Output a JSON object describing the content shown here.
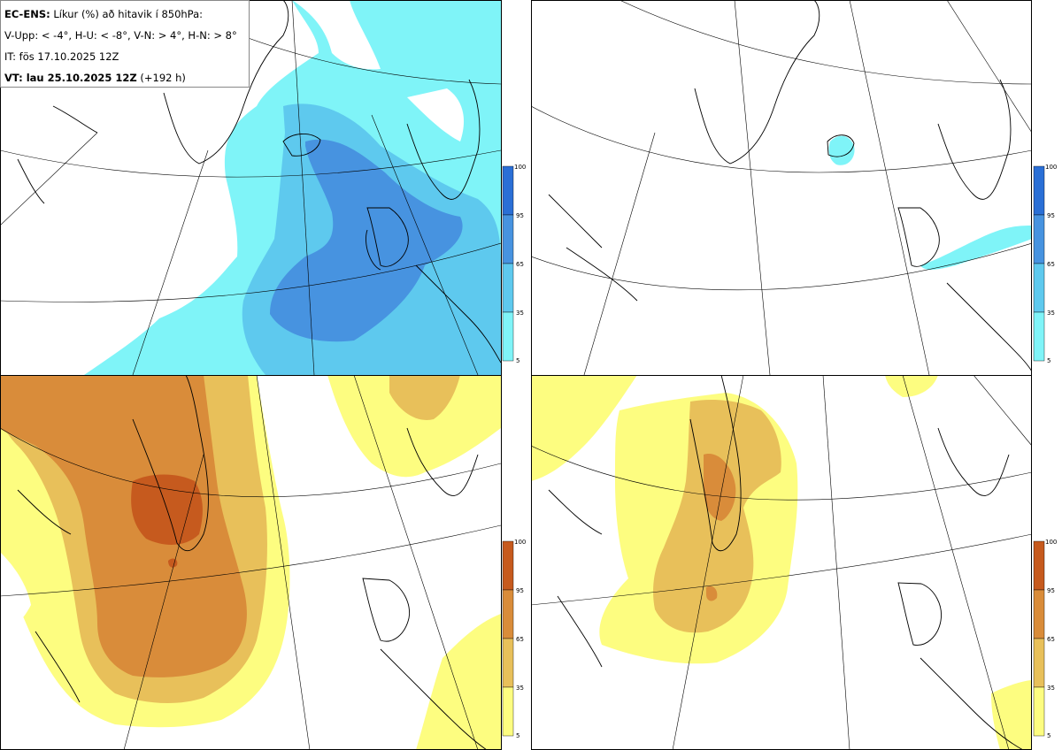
{
  "legend": {
    "line1_bold": "EC-ENS:",
    "line1_rest": " Líkur (%) að hitavik í 850hPa:",
    "line2": "V-Upp: < -4°, H-U: < -8°, V-N: > 4°, H-N: > 8°",
    "line3": "IT: fös 17.10.2025 12Z",
    "line4_bold": "VT: lau 25.10.2025 12Z",
    "line4_rest": " (+192 h)"
  },
  "colorbar": {
    "ticks": [
      "100",
      "95",
      "65",
      "35",
      "5"
    ],
    "cold_colors": [
      "#2a6fd6",
      "#4793e0",
      "#5ec9ee",
      "#7ff4f8"
    ],
    "warm_colors": [
      "#c65a1e",
      "#d98c3a",
      "#e8c05a",
      "#fdfd80"
    ]
  },
  "panels": [
    {
      "name": "V-Upp",
      "quantity": "< -4°"
    },
    {
      "name": "H-U",
      "quantity": "< -8°"
    },
    {
      "name": "V-N",
      "quantity": "> 4°"
    },
    {
      "name": "H-N",
      "quantity": "> 8°"
    }
  ]
}
